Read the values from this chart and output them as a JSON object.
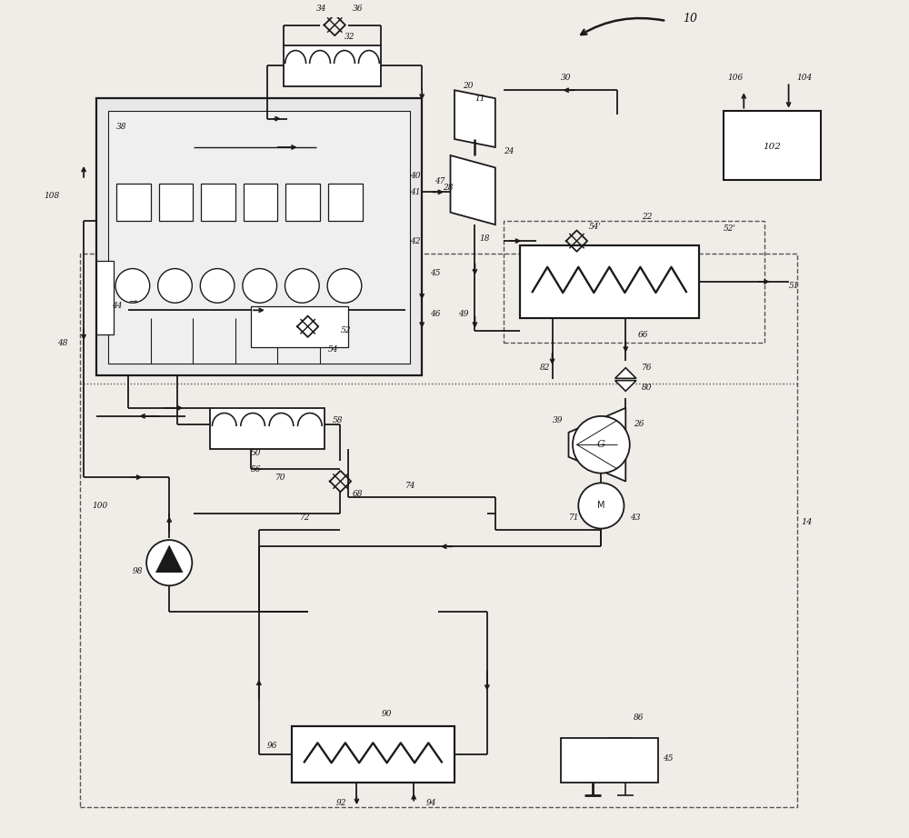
{
  "bg": "#f0ede8",
  "lc": "#1a1a1a",
  "lw": 1.3,
  "fig_w": 10.0,
  "fig_h": 9.22,
  "dpi": 100
}
